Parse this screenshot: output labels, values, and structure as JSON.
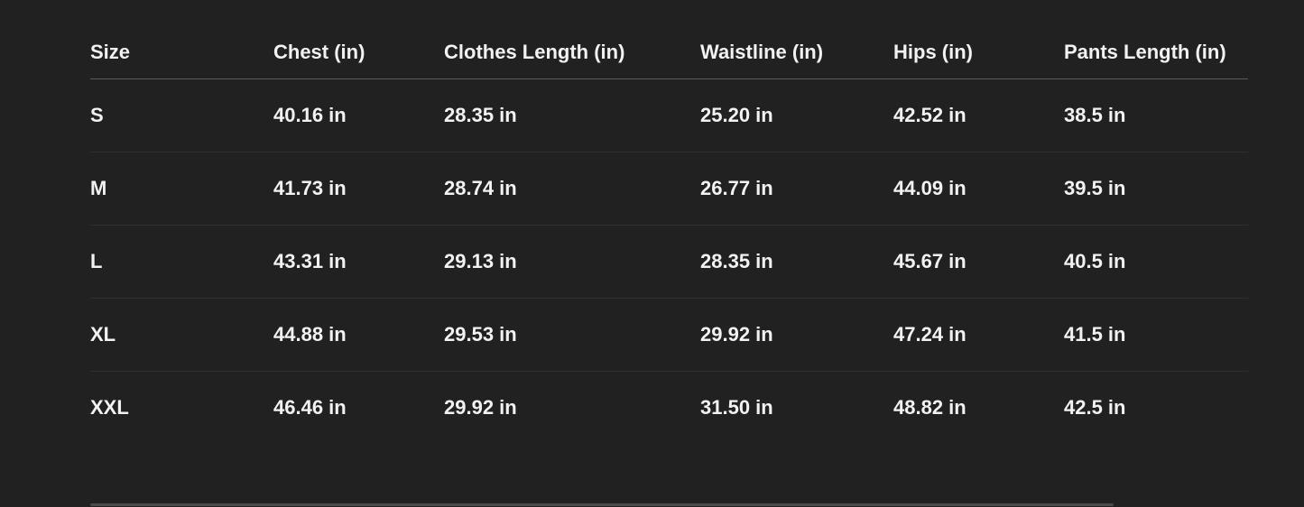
{
  "table": {
    "headers": [
      "Size",
      "Chest (in)",
      "Clothes Length (in)",
      "Waistline (in)",
      "Hips (in)",
      "Pants Length (in)"
    ],
    "rows": [
      [
        "S",
        "40.16 in",
        "28.35 in",
        "25.20 in",
        "42.52 in",
        "38.5 in"
      ],
      [
        "M",
        "41.73 in",
        "28.74 in",
        "26.77 in",
        "44.09 in",
        "39.5 in"
      ],
      [
        "L",
        "43.31 in",
        "29.13 in",
        "28.35 in",
        "45.67 in",
        "40.5 in"
      ],
      [
        "XL",
        "44.88 in",
        "29.53 in",
        "29.92 in",
        "47.24 in",
        "41.5 in"
      ],
      [
        "XXL",
        "46.46 in",
        "29.92 in",
        "31.50 in",
        "48.82 in",
        "42.5 in"
      ]
    ]
  },
  "colors": {
    "background": "#212121",
    "text": "#f2f2f2"
  }
}
